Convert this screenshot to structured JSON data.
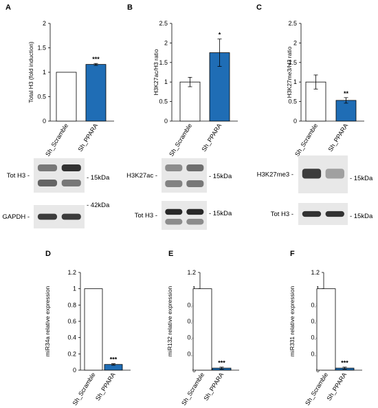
{
  "chart_data": [
    {
      "panel": "A",
      "type": "bar",
      "categories": [
        "Sh_Scramble",
        "Sh_PPARA"
      ],
      "values": [
        1.0,
        1.16
      ],
      "errors": [
        0,
        0.02
      ],
      "colors": [
        "#ffffff",
        "#1f6db5"
      ],
      "significance": [
        "",
        "***"
      ],
      "ylabel": "Total H3 (fold induction)",
      "ylim": [
        0,
        2
      ],
      "yticks": [
        0,
        0.5,
        1,
        1.5,
        2
      ],
      "grid": false,
      "tick_decimals": 0
    },
    {
      "panel": "B",
      "type": "bar",
      "categories": [
        "Sh_Scramble",
        "Sh_PPARA"
      ],
      "values": [
        1.0,
        1.75
      ],
      "errors": [
        0.12,
        0.35
      ],
      "colors": [
        "#ffffff",
        "#1f6db5"
      ],
      "significance": [
        "",
        "*"
      ],
      "ylabel": "H3K27ac/H3 ratio",
      "ylim": [
        0,
        2.5
      ],
      "yticks": [
        0,
        0.5,
        1,
        1.5,
        2,
        2.5
      ],
      "grid": false,
      "tick_decimals": 0
    },
    {
      "panel": "C",
      "type": "bar",
      "categories": [
        "Sh_Scramble",
        "Sh_PPARA"
      ],
      "values": [
        1.0,
        0.53
      ],
      "errors": [
        0.18,
        0.07
      ],
      "colors": [
        "#ffffff",
        "#1f6db5"
      ],
      "significance": [
        "",
        "**"
      ],
      "ylabel": "H3K27me3/H3 ratio",
      "ylim": [
        0,
        2.5
      ],
      "yticks": [
        0,
        0.5,
        1,
        1.5,
        2,
        2.5
      ],
      "grid": false,
      "tick_decimals": 0
    },
    {
      "panel": "D",
      "type": "bar",
      "categories": [
        "Sh_Scramble",
        "Sh_PPARA"
      ],
      "values": [
        1.0,
        0.07
      ],
      "errors": [
        0,
        0.01
      ],
      "colors": [
        "#ffffff",
        "#1f6db5"
      ],
      "significance": [
        "",
        "***"
      ],
      "ylabel": "miR34a relative expression",
      "ylim": [
        0,
        1.2
      ],
      "yticks": [
        0,
        0.2,
        0.4,
        0.6,
        0.8,
        1,
        1.2
      ],
      "grid": false,
      "tick_decimals": 1
    },
    {
      "panel": "E",
      "type": "bar",
      "categories": [
        "Sh_Scramble",
        "Sh_PPARA"
      ],
      "values": [
        1.0,
        0.025
      ],
      "errors": [
        0,
        0.012
      ],
      "colors": [
        "#ffffff",
        "#1f6db5"
      ],
      "significance": [
        "",
        "***"
      ],
      "ylabel": "miR132 relative expression",
      "ylim": [
        0,
        1.2
      ],
      "yticks": [
        0,
        0.2,
        0.4,
        0.6,
        0.8,
        1,
        1.2
      ],
      "grid": false,
      "tick_decimals": 1
    },
    {
      "panel": "F",
      "type": "bar",
      "categories": [
        "Sh_Scramble",
        "Sh_PPARA"
      ],
      "values": [
        1.0,
        0.025
      ],
      "errors": [
        0,
        0.012
      ],
      "colors": [
        "#ffffff",
        "#1f6db5"
      ],
      "significance": [
        "",
        "***"
      ],
      "ylabel": "miR331 relative expression",
      "ylim": [
        0,
        1.2
      ],
      "yticks": [
        0,
        0.2,
        0.4,
        0.6,
        0.8,
        1,
        1.2
      ],
      "grid": false,
      "tick_decimals": 1
    }
  ],
  "blots": [
    {
      "panel": "A",
      "rows": [
        {
          "label": "Tot H3 -",
          "marker": "- 15kDa",
          "bands": [
            [
              0.55,
              0.65
            ],
            [
              0.9,
              0.55
            ]
          ]
        },
        {
          "label": "GAPDH -",
          "marker": "- 42kDa",
          "bands": [
            [
              0.85
            ],
            [
              0.85
            ]
          ]
        }
      ]
    },
    {
      "panel": "B",
      "rows": [
        {
          "label": "H3K27ac -",
          "marker": "- 15kDa",
          "bands": [
            [
              0.45,
              0.5
            ],
            [
              0.6,
              0.55
            ]
          ]
        },
        {
          "label": "Tot H3 -",
          "marker": "- 15kDa",
          "bands": [
            [
              0.95,
              0.45
            ],
            [
              0.95,
              0.45
            ]
          ]
        }
      ]
    },
    {
      "panel": "C",
      "rows": [
        {
          "label": "H3K27me3 -",
          "marker": "- 15kDa",
          "bands": [
            [
              0.85
            ],
            [
              0.35
            ]
          ]
        },
        {
          "label": "Tot H3 -",
          "marker": "- 15kDa",
          "bands": [
            [
              0.9
            ],
            [
              0.9
            ]
          ]
        }
      ]
    }
  ]
}
